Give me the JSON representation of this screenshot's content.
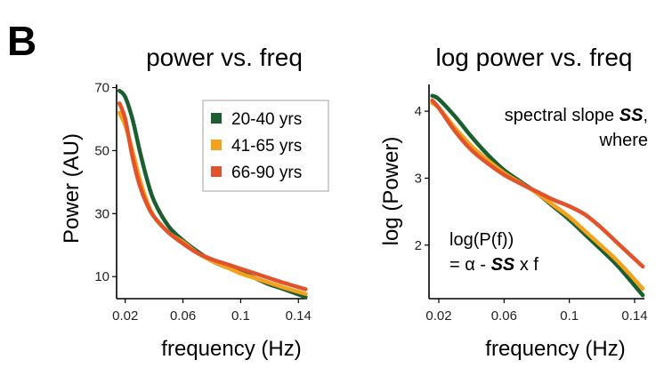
{
  "panel_label": "B",
  "colors": {
    "young": "#1b5e2f",
    "mid": "#f4a21c",
    "old": "#e2532c"
  },
  "chart_data": [
    {
      "type": "line",
      "title": "power vs. freq",
      "xlabel": "frequency (Hz)",
      "ylabel": "Power (AU)",
      "xlim": [
        0.014,
        0.146
      ],
      "ylim": [
        3,
        71
      ],
      "xticks": [
        0.02,
        0.06,
        0.1,
        0.14
      ],
      "xtick_labels": [
        "0.02",
        "0.06",
        "0.1",
        "0.14"
      ],
      "yticks": [
        10,
        30,
        50,
        70
      ],
      "ytick_labels": [
        "10",
        "30",
        "50",
        "70"
      ],
      "legend": {
        "placement": "top-right"
      },
      "series": [
        {
          "name": "20-40 yrs",
          "color": "#1b5e2f",
          "x": [
            0.016,
            0.02,
            0.025,
            0.03,
            0.035,
            0.04,
            0.05,
            0.06,
            0.07,
            0.08,
            0.09,
            0.1,
            0.11,
            0.12,
            0.13,
            0.145
          ],
          "y": [
            69,
            67,
            60,
            50,
            41,
            34,
            26,
            21.5,
            18,
            15,
            13,
            11.5,
            9.5,
            7.5,
            6,
            3.5
          ]
        },
        {
          "name": "41-65 yrs",
          "color": "#f4a21c",
          "x": [
            0.016,
            0.02,
            0.025,
            0.03,
            0.035,
            0.04,
            0.05,
            0.06,
            0.07,
            0.08,
            0.09,
            0.1,
            0.11,
            0.12,
            0.13,
            0.145
          ],
          "y": [
            62,
            58,
            50,
            41,
            34,
            29,
            24,
            21,
            17.5,
            15,
            13,
            11,
            9.5,
            8,
            6.5,
            4.5
          ]
        },
        {
          "name": "66-90 yrs",
          "color": "#e2532c",
          "x": [
            0.016,
            0.02,
            0.025,
            0.03,
            0.035,
            0.04,
            0.05,
            0.06,
            0.07,
            0.08,
            0.09,
            0.1,
            0.11,
            0.12,
            0.13,
            0.145
          ],
          "y": [
            65,
            60,
            48,
            39,
            33,
            29,
            24,
            20.5,
            17.5,
            15.5,
            14,
            12.5,
            11,
            9.5,
            8,
            6
          ]
        }
      ]
    },
    {
      "type": "line",
      "title": "log power vs. freq",
      "xlabel": "frequency (Hz)",
      "ylabel": "log (Power)",
      "xlim": [
        0.014,
        0.146
      ],
      "ylim": [
        1.2,
        4.4
      ],
      "xticks": [
        0.02,
        0.06,
        0.1,
        0.14
      ],
      "xtick_labels": [
        "0.02",
        "0.06",
        "0.1",
        "0.14"
      ],
      "yticks": [
        2,
        3,
        4
      ],
      "ytick_labels": [
        "2",
        "3",
        "4"
      ],
      "annotations": {
        "slope_line1_text": "spectral slope ",
        "slope_line1_bold": "SS",
        "slope_line1_comma": ",",
        "slope_line2": "where",
        "formula_line1": "log(P(f))",
        "formula_line2_pre": "= α - ",
        "formula_line2_bold": "SS",
        "formula_line2_post": " x f"
      },
      "series": [
        {
          "name": "20-40 yrs",
          "color": "#1b5e2f",
          "x": [
            0.016,
            0.02,
            0.03,
            0.04,
            0.05,
            0.06,
            0.07,
            0.08,
            0.09,
            0.1,
            0.11,
            0.12,
            0.13,
            0.145
          ],
          "y": [
            4.23,
            4.18,
            3.92,
            3.62,
            3.35,
            3.12,
            2.95,
            2.78,
            2.58,
            2.38,
            2.15,
            1.92,
            1.68,
            1.25
          ]
        },
        {
          "name": "41-65 yrs",
          "color": "#f4a21c",
          "x": [
            0.016,
            0.02,
            0.03,
            0.04,
            0.05,
            0.06,
            0.07,
            0.08,
            0.09,
            0.1,
            0.11,
            0.12,
            0.13,
            0.145
          ],
          "y": [
            4.12,
            4.05,
            3.75,
            3.48,
            3.27,
            3.08,
            2.93,
            2.78,
            2.6,
            2.42,
            2.2,
            1.98,
            1.75,
            1.35
          ]
        },
        {
          "name": "66-90 yrs",
          "color": "#e2532c",
          "x": [
            0.016,
            0.02,
            0.03,
            0.04,
            0.05,
            0.06,
            0.07,
            0.08,
            0.09,
            0.1,
            0.11,
            0.12,
            0.13,
            0.145
          ],
          "y": [
            4.16,
            4.05,
            3.7,
            3.42,
            3.22,
            3.05,
            2.92,
            2.8,
            2.68,
            2.58,
            2.45,
            2.25,
            2.02,
            1.68
          ]
        }
      ]
    }
  ]
}
